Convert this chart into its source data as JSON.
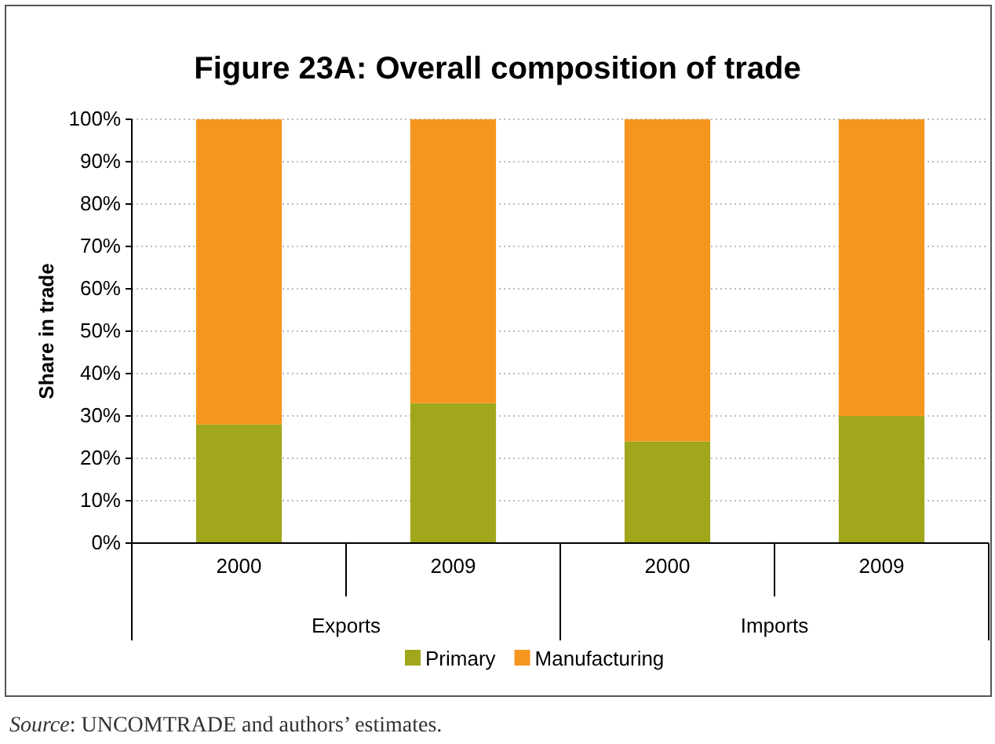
{
  "chart_data": {
    "type": "bar",
    "title": "Figure 23A: Overall composition of trade",
    "ylabel": "Share in trade",
    "categories": [
      "2000",
      "2009",
      "2000",
      "2009"
    ],
    "series": [
      {
        "name": "Primary",
        "color": "#a0a71b",
        "values": [
          28,
          33,
          24,
          30
        ]
      },
      {
        "name": "Manufacturing",
        "color": "#f7961f",
        "values": [
          72,
          67,
          76,
          70
        ]
      }
    ],
    "stacked": true,
    "ylim": [
      0,
      100
    ],
    "yticks": [
      {
        "value": 0,
        "label": "0%"
      },
      {
        "value": 10,
        "label": "10%"
      },
      {
        "value": 20,
        "label": "20%"
      },
      {
        "value": 30,
        "label": "30%"
      },
      {
        "value": 40,
        "label": "40%"
      },
      {
        "value": 50,
        "label": "50%"
      },
      {
        "value": 60,
        "label": "60%"
      },
      {
        "value": 70,
        "label": "70%"
      },
      {
        "value": 80,
        "label": "80%"
      },
      {
        "value": 90,
        "label": "90%"
      },
      {
        "value": 100,
        "label": "100%"
      }
    ],
    "grid": "y",
    "legend": "bottom",
    "annotations": [
      "Exports",
      "Imports",
      "Source: UNCOMTRADE and authors’ estimates."
    ]
  }
}
